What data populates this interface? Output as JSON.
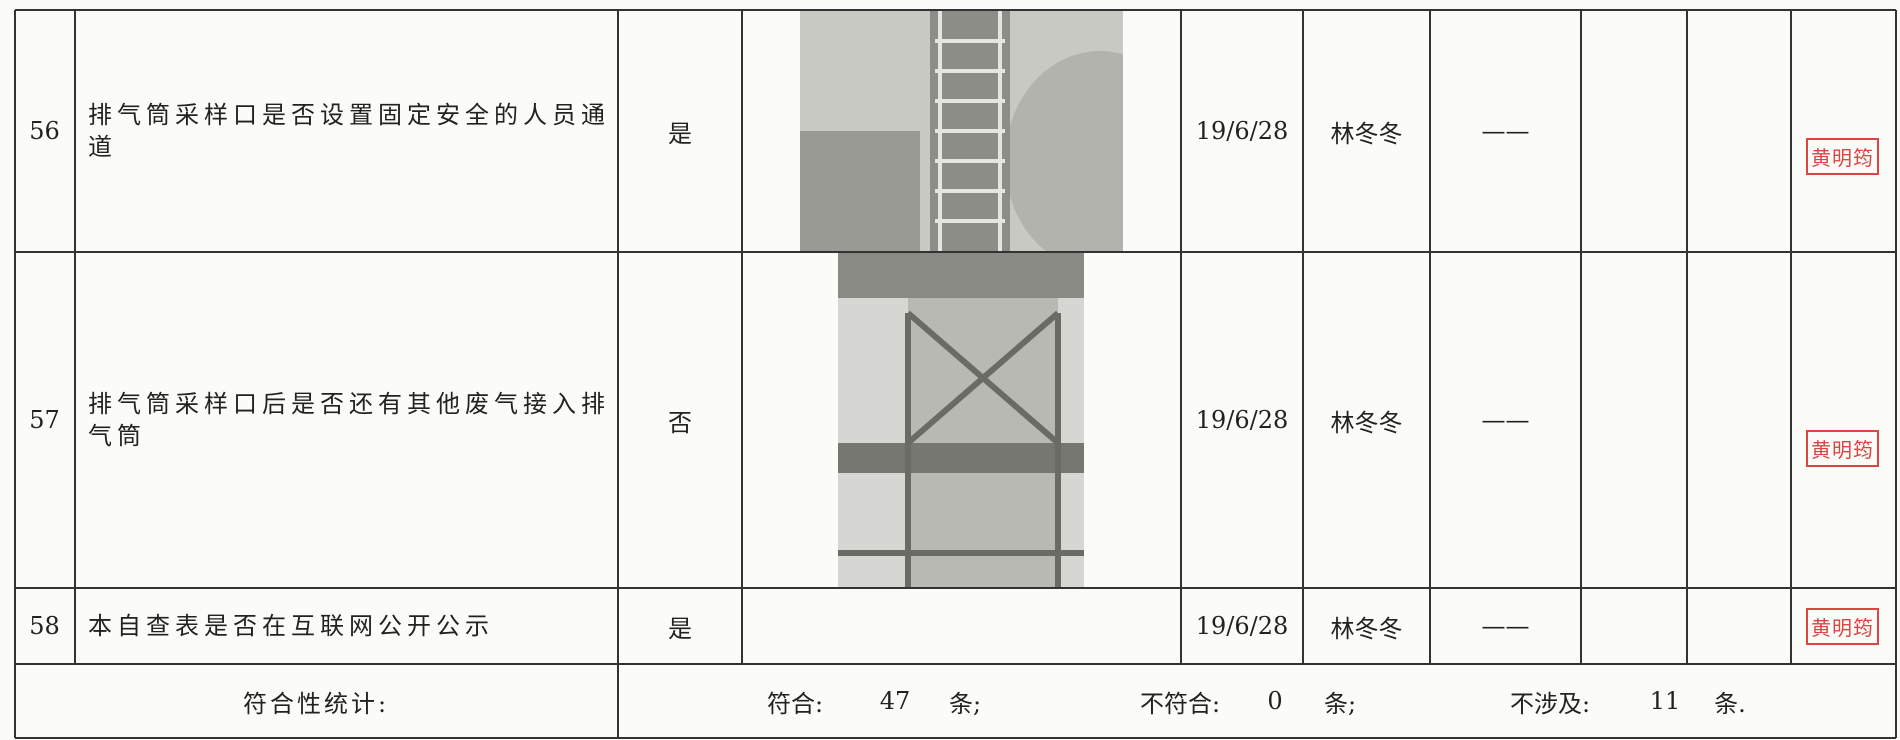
{
  "rows": [
    {
      "no": "56",
      "item": "排气筒采样口是否设置固定安全的人员通道",
      "result": "是",
      "date": "19/6/28",
      "person": "林冬冬",
      "remark": "——",
      "seal": "黄明筠"
    },
    {
      "no": "57",
      "item": "排气筒采样口后是否还有其他废气接入排气筒",
      "result": "否",
      "date": "19/6/28",
      "person": "林冬冬",
      "remark": "——",
      "seal": "黄明筠"
    },
    {
      "no": "58",
      "item": "本自查表是否在互联网公开公示",
      "result": "是",
      "date": "19/6/28",
      "person": "林冬冬",
      "remark": "——",
      "seal": "黄明筠"
    }
  ],
  "summary": {
    "label": "符合性统计:",
    "conform_label": "符合:",
    "conform": 47,
    "conform_unit": "条;",
    "nonconform_label": "不符合:",
    "nonconform": 0,
    "nonconform_unit": "条;",
    "na_label": "不涉及:",
    "na": 11,
    "na_unit": "条."
  }
}
